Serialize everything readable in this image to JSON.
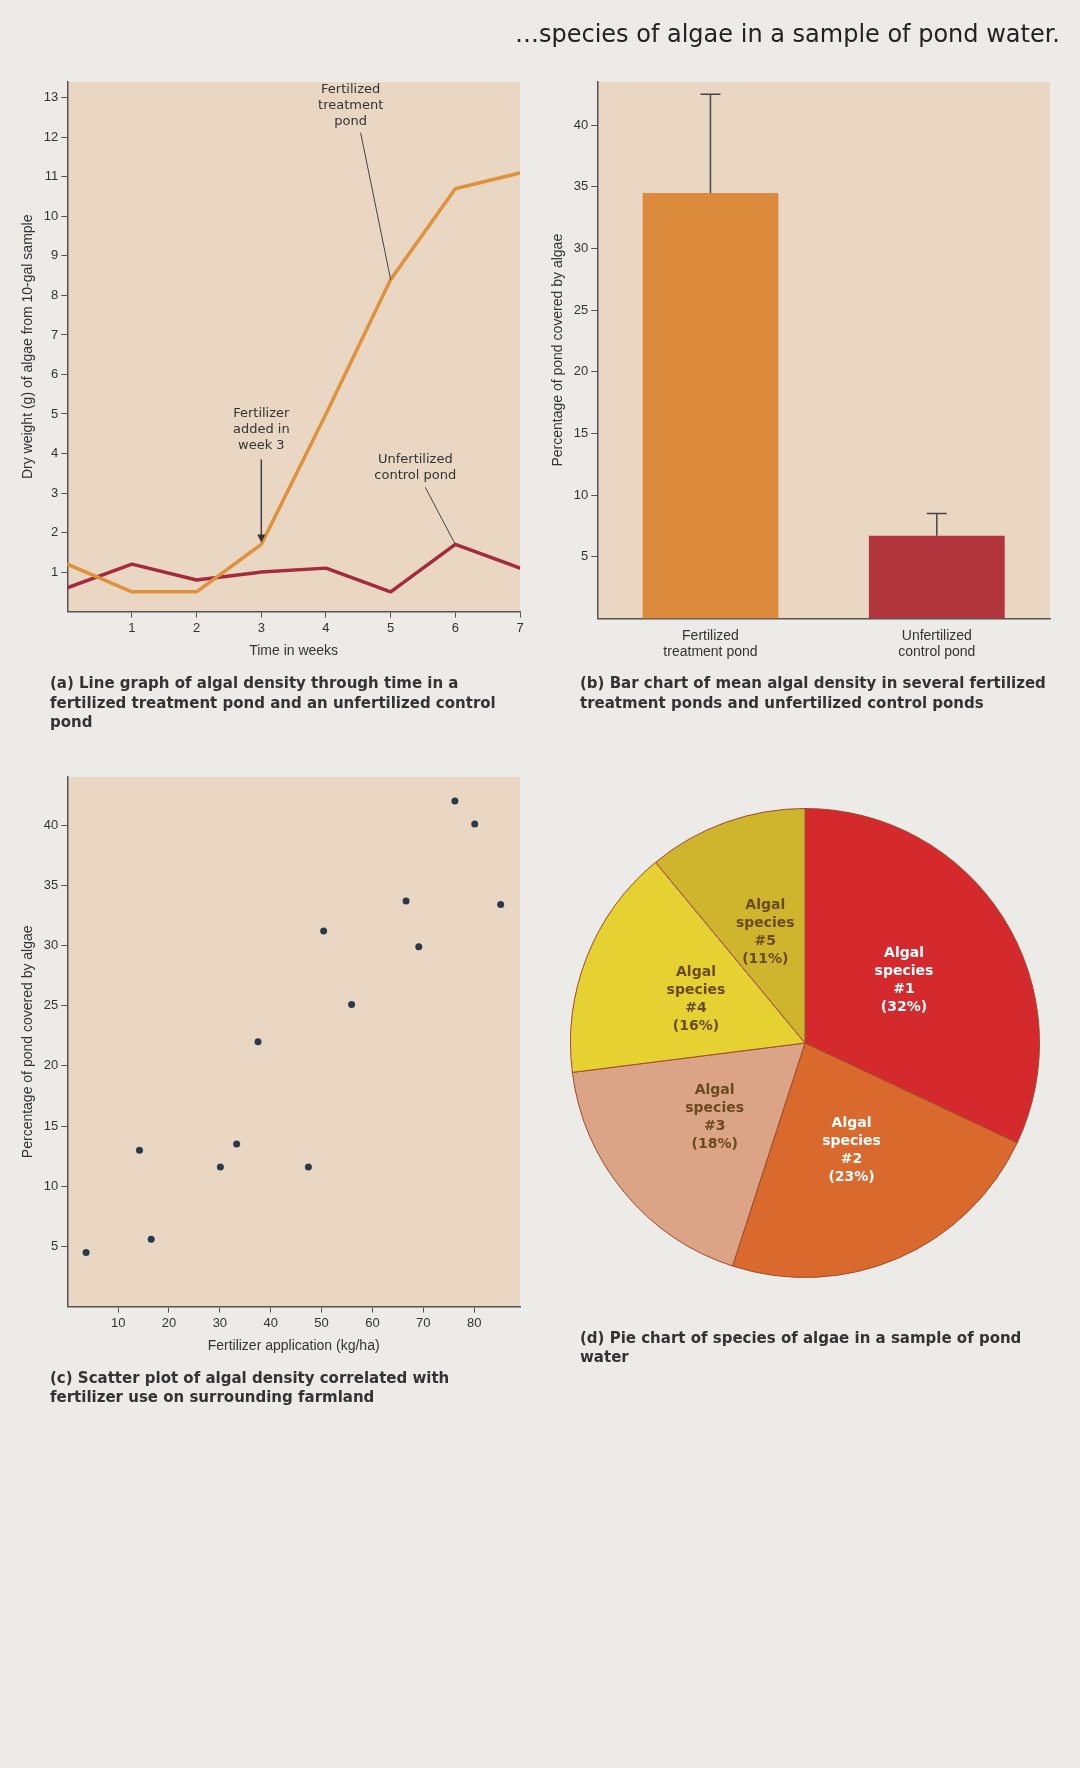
{
  "chart_data": [
    {
      "type": "other",
      "title": "…species of algae in a sample of pond water."
    },
    {
      "type": "line",
      "title": "(a) Line graph of algal density through time in a fertilized treatment pond and an unfertilized control pond",
      "xlabel": "Time in weeks",
      "ylabel": "Dry weight (g) of algae from 10-gal sample",
      "x": [
        0,
        1,
        2,
        3,
        4,
        5,
        6,
        7
      ],
      "marker": "none",
      "line_style": "solid",
      "grid": false,
      "legend": false,
      "series": [
        {
          "name": "Fertilized treatment pond",
          "color": "#e0913c",
          "values": [
            1.2,
            0.5,
            0.5,
            1.7,
            5.0,
            8.4,
            10.7,
            11.1
          ]
        },
        {
          "name": "Unfertilized control pond",
          "color": "#a52a3c",
          "values": [
            0.6,
            1.2,
            0.8,
            1.0,
            1.1,
            0.5,
            1.7,
            1.1
          ]
        }
      ],
      "annotations": [
        {
          "text": "Fertilizer added in week 3",
          "x": 3,
          "y": 1.7
        }
      ],
      "xlim": [
        0,
        7
      ],
      "xticks": [
        1,
        2,
        3,
        4,
        5,
        6,
        7
      ],
      "ylim": [
        0,
        13.4
      ],
      "yticks": [
        1,
        2,
        3,
        4,
        5,
        6,
        7,
        8,
        9,
        10,
        11,
        12,
        13
      ]
    },
    {
      "type": "bar",
      "title": "(b) Bar chart of mean algal density in several fertilized treatment ponds and unfertilized control ponds",
      "ylabel": "Percentage of pond covered by algae",
      "categories": [
        "Fertilized treatment pond",
        "Unfertilized control pond"
      ],
      "values": [
        34.5,
        6.7
      ],
      "colors": [
        "#dc8a3c",
        "#b2343c"
      ],
      "errors": [
        [
          34.5,
          42.5
        ],
        [
          6.7,
          8.5
        ]
      ],
      "grid": false,
      "legend": false,
      "ylim": [
        0,
        43.5
      ],
      "yticks": [
        5,
        10,
        15,
        20,
        25,
        30,
        35,
        40
      ]
    },
    {
      "type": "scatter",
      "title": "(c) Scatter plot of algal density correlated with fertilizer use on surrounding farmland",
      "xlabel": "Fertilizer application (kg/ha)",
      "ylabel": "Percentage of pond covered by algae",
      "marker": "circle",
      "grid": false,
      "legend": false,
      "x": [
        3.7,
        14.2,
        16.5,
        30.1,
        33.3,
        37.5,
        47.4,
        50.4,
        55.9,
        66.6,
        69.1,
        76.2,
        80.1,
        85.2
      ],
      "series": [
        {
          "color": "#2a3a4c",
          "values": [
            4.5,
            13.0,
            5.6,
            11.6,
            13.5,
            22.0,
            11.6,
            31.2,
            25.1,
            33.7,
            29.9,
            42.0,
            40.1,
            33.4
          ]
        }
      ],
      "xlim": [
        0,
        89
      ],
      "xticks": [
        10,
        20,
        30,
        40,
        50,
        60,
        70,
        80
      ],
      "ylim": [
        0,
        44
      ],
      "yticks": [
        5,
        10,
        15,
        20,
        25,
        30,
        35,
        40
      ]
    },
    {
      "type": "pie",
      "title": "(d) Pie chart of species of algae in a sample of pond water",
      "legend": false,
      "categories": [
        "Algal species #1",
        "Algal species #2",
        "Algal species #3",
        "Algal species #4",
        "Algal species #5"
      ],
      "values": [
        32,
        23,
        18,
        16,
        11
      ],
      "value_labels": [
        "(32%)",
        "(23%)",
        "(18%)",
        "(16%)",
        "(11%)"
      ],
      "colors": [
        "#d42a2e",
        "#d9692c",
        "#dba486",
        "#e6d132",
        "#cfb52e"
      ]
    }
  ]
}
